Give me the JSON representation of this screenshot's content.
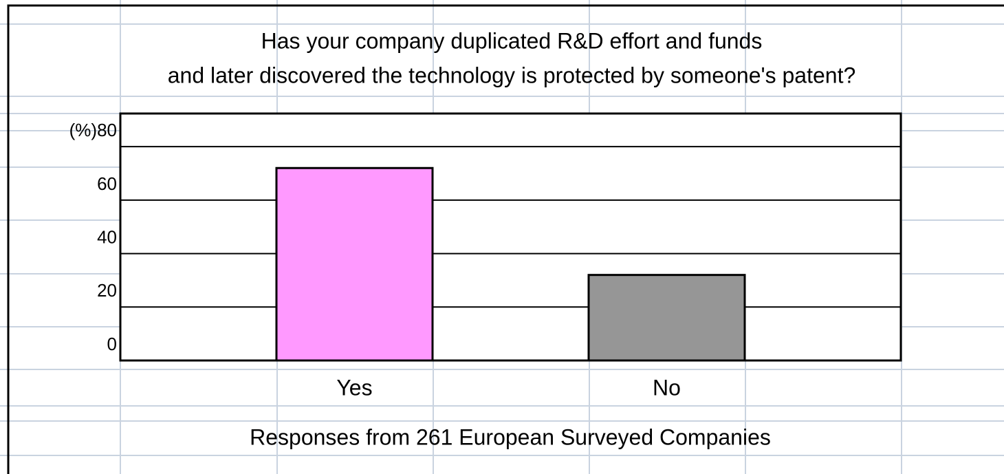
{
  "chart_data": {
    "type": "bar",
    "title": [
      "Has your company duplicated R&D effort and funds",
      "and later discovered the technology is protected by someone's patent?"
    ],
    "x_label": "Responses from 261 European Surveyed Companies",
    "categories": [
      "Yes",
      "No"
    ],
    "values": [
      72,
      32
    ],
    "colors": [
      "#ff99ff",
      "#969696"
    ],
    "ylim": [
      0,
      92.4
    ],
    "yticks": [
      0,
      20,
      40,
      60,
      {
        "value": 80,
        "label": "(%)80"
      }
    ],
    "grid": true
  }
}
